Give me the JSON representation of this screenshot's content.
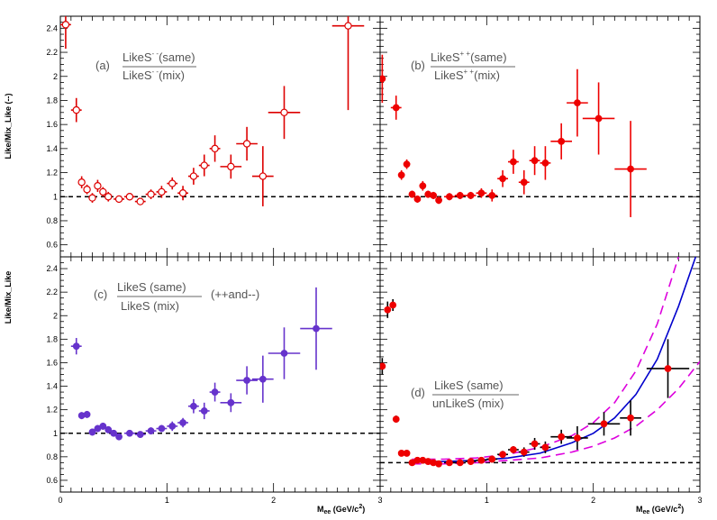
{
  "figure": {
    "left_ytitle": "Like/Mix_Like (--)",
    "right_ytitle": "Like/Mix_Like",
    "xtitle_main": "M",
    "xtitle_sub": "ee",
    "xtitle_unit": " (GeV/c",
    "xtitle_sup": "2",
    "xtitle_close": ")"
  },
  "panels": [
    {
      "id": "a",
      "tag": "(a)",
      "num_pre": "LikeS",
      "num_sup": "- -",
      "num_post": "(same)",
      "den_pre": "LikeS",
      "den_sup": "- -",
      "den_post": "(mix)",
      "extra": ""
    },
    {
      "id": "b",
      "tag": "(b)",
      "num_pre": "LikeS",
      "num_sup": "+ +",
      "num_post": "(same)",
      "den_pre": "LikeS",
      "den_sup": "+ +",
      "den_post": "(mix)",
      "extra": ""
    },
    {
      "id": "c",
      "tag": "(c)",
      "num_pre": "LikeS (same)",
      "num_sup": "",
      "num_post": "",
      "den_pre": "LikeS (mix)",
      "den_sup": "",
      "den_post": "",
      "extra": "(++and--)"
    },
    {
      "id": "d",
      "tag": "(d)",
      "num_pre": "LikeS (same)",
      "num_sup": "",
      "num_post": "",
      "den_pre": "unLikeS (mix)",
      "den_sup": "",
      "den_post": "",
      "extra": ""
    }
  ],
  "chart_data": [
    {
      "id": "a",
      "type": "scatter",
      "marker": "open-circle",
      "color": "#dd0000",
      "xlim": [
        0,
        3
      ],
      "ylim": [
        0.5,
        2.5
      ],
      "xticks": [],
      "yticks": [
        "0.6",
        "0.8",
        "1",
        "1.2",
        "1.4",
        "1.6",
        "1.8",
        "2",
        "2.2",
        "2.4"
      ],
      "reference_line": 1,
      "points": [
        {
          "x": 0.05,
          "y": 2.43,
          "ex": 0.05,
          "ey": 0.2
        },
        {
          "x": 0.15,
          "y": 1.72,
          "ex": 0.05,
          "ey": 0.1
        },
        {
          "x": 0.2,
          "y": 1.12,
          "ex": 0.025,
          "ey": 0.05
        },
        {
          "x": 0.25,
          "y": 1.06,
          "ex": 0.025,
          "ey": 0.04
        },
        {
          "x": 0.3,
          "y": 0.99,
          "ex": 0.025,
          "ey": 0.04
        },
        {
          "x": 0.35,
          "y": 1.09,
          "ex": 0.025,
          "ey": 0.05
        },
        {
          "x": 0.4,
          "y": 1.04,
          "ex": 0.025,
          "ey": 0.04
        },
        {
          "x": 0.45,
          "y": 1.0,
          "ex": 0.025,
          "ey": 0.04
        },
        {
          "x": 0.55,
          "y": 0.98,
          "ex": 0.05,
          "ey": 0.03
        },
        {
          "x": 0.65,
          "y": 1.0,
          "ex": 0.05,
          "ey": 0.03
        },
        {
          "x": 0.75,
          "y": 0.96,
          "ex": 0.05,
          "ey": 0.03
        },
        {
          "x": 0.85,
          "y": 1.02,
          "ex": 0.05,
          "ey": 0.04
        },
        {
          "x": 0.95,
          "y": 1.04,
          "ex": 0.05,
          "ey": 0.05
        },
        {
          "x": 1.05,
          "y": 1.11,
          "ex": 0.05,
          "ey": 0.05
        },
        {
          "x": 1.15,
          "y": 1.03,
          "ex": 0.05,
          "ey": 0.06
        },
        {
          "x": 1.25,
          "y": 1.17,
          "ex": 0.05,
          "ey": 0.07
        },
        {
          "x": 1.35,
          "y": 1.26,
          "ex": 0.05,
          "ey": 0.09
        },
        {
          "x": 1.45,
          "y": 1.4,
          "ex": 0.05,
          "ey": 0.11
        },
        {
          "x": 1.6,
          "y": 1.25,
          "ex": 0.1,
          "ey": 0.1
        },
        {
          "x": 1.75,
          "y": 1.44,
          "ex": 0.1,
          "ey": 0.14
        },
        {
          "x": 1.9,
          "y": 1.17,
          "ex": 0.1,
          "ey": 0.25
        },
        {
          "x": 2.1,
          "y": 1.7,
          "ex": 0.15,
          "ey": 0.22
        },
        {
          "x": 2.7,
          "y": 2.42,
          "ex": 0.15,
          "ey": 0.7
        }
      ]
    },
    {
      "id": "b",
      "type": "scatter",
      "marker": "filled-circle",
      "color": "#ee0000",
      "xlim": [
        0,
        3
      ],
      "ylim": [
        0.5,
        2.5
      ],
      "xticks": [],
      "yticks": [],
      "reference_line": 1,
      "points": [
        {
          "x": 0.02,
          "y": 1.98,
          "ex": 0.02,
          "ey": 0.2
        },
        {
          "x": 0.15,
          "y": 1.74,
          "ex": 0.05,
          "ey": 0.1
        },
        {
          "x": 0.2,
          "y": 1.18,
          "ex": 0.025,
          "ey": 0.04
        },
        {
          "x": 0.25,
          "y": 1.27,
          "ex": 0.025,
          "ey": 0.04
        },
        {
          "x": 0.3,
          "y": 1.02,
          "ex": 0.025,
          "ey": 0.03
        },
        {
          "x": 0.35,
          "y": 0.98,
          "ex": 0.025,
          "ey": 0.03
        },
        {
          "x": 0.4,
          "y": 1.09,
          "ex": 0.025,
          "ey": 0.04
        },
        {
          "x": 0.45,
          "y": 1.02,
          "ex": 0.025,
          "ey": 0.03
        },
        {
          "x": 0.5,
          "y": 1.01,
          "ex": 0.025,
          "ey": 0.03
        },
        {
          "x": 0.55,
          "y": 0.97,
          "ex": 0.025,
          "ey": 0.03
        },
        {
          "x": 0.65,
          "y": 1.0,
          "ex": 0.05,
          "ey": 0.03
        },
        {
          "x": 0.75,
          "y": 1.01,
          "ex": 0.05,
          "ey": 0.03
        },
        {
          "x": 0.85,
          "y": 1.01,
          "ex": 0.05,
          "ey": 0.03
        },
        {
          "x": 0.95,
          "y": 1.03,
          "ex": 0.05,
          "ey": 0.04
        },
        {
          "x": 1.05,
          "y": 1.01,
          "ex": 0.05,
          "ey": 0.05
        },
        {
          "x": 1.15,
          "y": 1.15,
          "ex": 0.05,
          "ey": 0.07
        },
        {
          "x": 1.25,
          "y": 1.29,
          "ex": 0.05,
          "ey": 0.1
        },
        {
          "x": 1.35,
          "y": 1.12,
          "ex": 0.05,
          "ey": 0.1
        },
        {
          "x": 1.45,
          "y": 1.3,
          "ex": 0.05,
          "ey": 0.12
        },
        {
          "x": 1.55,
          "y": 1.28,
          "ex": 0.05,
          "ey": 0.14
        },
        {
          "x": 1.7,
          "y": 1.46,
          "ex": 0.1,
          "ey": 0.15
        },
        {
          "x": 1.85,
          "y": 1.78,
          "ex": 0.1,
          "ey": 0.28
        },
        {
          "x": 2.05,
          "y": 1.65,
          "ex": 0.15,
          "ey": 0.3
        },
        {
          "x": 2.35,
          "y": 1.23,
          "ex": 0.15,
          "ey": 0.4
        }
      ]
    },
    {
      "id": "c",
      "type": "scatter",
      "marker": "filled-circle",
      "color": "#6633cc",
      "xlim": [
        0,
        3
      ],
      "ylim": [
        0.5,
        2.5
      ],
      "xticks": [
        "0",
        "1",
        "2",
        "3"
      ],
      "yticks": [
        "0.6",
        "0.8",
        "1",
        "1.2",
        "1.4",
        "1.6",
        "1.8",
        "2",
        "2.2",
        "2.4"
      ],
      "reference_line": 1,
      "points": [
        {
          "x": 0.15,
          "y": 1.74,
          "ex": 0.05,
          "ey": 0.07
        },
        {
          "x": 0.2,
          "y": 1.15,
          "ex": 0.025,
          "ey": 0.03
        },
        {
          "x": 0.25,
          "y": 1.16,
          "ex": 0.025,
          "ey": 0.03
        },
        {
          "x": 0.3,
          "y": 1.01,
          "ex": 0.025,
          "ey": 0.03
        },
        {
          "x": 0.35,
          "y": 1.04,
          "ex": 0.025,
          "ey": 0.03
        },
        {
          "x": 0.4,
          "y": 1.06,
          "ex": 0.025,
          "ey": 0.03
        },
        {
          "x": 0.45,
          "y": 1.03,
          "ex": 0.025,
          "ey": 0.03
        },
        {
          "x": 0.5,
          "y": 1.0,
          "ex": 0.025,
          "ey": 0.02
        },
        {
          "x": 0.55,
          "y": 0.97,
          "ex": 0.025,
          "ey": 0.02
        },
        {
          "x": 0.65,
          "y": 1.0,
          "ex": 0.05,
          "ey": 0.02
        },
        {
          "x": 0.75,
          "y": 0.99,
          "ex": 0.05,
          "ey": 0.02
        },
        {
          "x": 0.85,
          "y": 1.02,
          "ex": 0.05,
          "ey": 0.03
        },
        {
          "x": 0.95,
          "y": 1.04,
          "ex": 0.05,
          "ey": 0.03
        },
        {
          "x": 1.05,
          "y": 1.06,
          "ex": 0.05,
          "ey": 0.04
        },
        {
          "x": 1.15,
          "y": 1.09,
          "ex": 0.05,
          "ey": 0.04
        },
        {
          "x": 1.25,
          "y": 1.23,
          "ex": 0.05,
          "ey": 0.06
        },
        {
          "x": 1.35,
          "y": 1.19,
          "ex": 0.05,
          "ey": 0.07
        },
        {
          "x": 1.45,
          "y": 1.35,
          "ex": 0.05,
          "ey": 0.08
        },
        {
          "x": 1.6,
          "y": 1.26,
          "ex": 0.1,
          "ey": 0.08
        },
        {
          "x": 1.75,
          "y": 1.45,
          "ex": 0.1,
          "ey": 0.12
        },
        {
          "x": 1.9,
          "y": 1.46,
          "ex": 0.1,
          "ey": 0.2
        },
        {
          "x": 2.1,
          "y": 1.68,
          "ex": 0.15,
          "ey": 0.22
        },
        {
          "x": 2.4,
          "y": 1.89,
          "ex": 0.15,
          "ey": 0.35
        }
      ]
    },
    {
      "id": "d",
      "type": "scatter",
      "marker": "filled-circle",
      "color": "#ee0000",
      "xlim": [
        0,
        3
      ],
      "ylim": [
        0.5,
        2.5
      ],
      "xticks": [
        "1",
        "2",
        "3"
      ],
      "yticks": [],
      "reference_line": 0.75,
      "points": [
        {
          "x": 0.02,
          "y": 1.57,
          "ex": 0.02,
          "ey": 0.07
        },
        {
          "x": 0.07,
          "y": 2.05,
          "ex": 0.025,
          "ey": 0.07
        },
        {
          "x": 0.12,
          "y": 2.09,
          "ex": 0.025,
          "ey": 0.05
        },
        {
          "x": 0.15,
          "y": 1.12,
          "ex": 0.025,
          "ey": 0.03
        },
        {
          "x": 0.2,
          "y": 0.83,
          "ex": 0.025,
          "ey": 0.02
        },
        {
          "x": 0.25,
          "y": 0.83,
          "ex": 0.025,
          "ey": 0.02
        },
        {
          "x": 0.3,
          "y": 0.75,
          "ex": 0.025,
          "ey": 0.02
        },
        {
          "x": 0.35,
          "y": 0.77,
          "ex": 0.025,
          "ey": 0.02
        },
        {
          "x": 0.4,
          "y": 0.77,
          "ex": 0.025,
          "ey": 0.02
        },
        {
          "x": 0.45,
          "y": 0.76,
          "ex": 0.025,
          "ey": 0.02
        },
        {
          "x": 0.5,
          "y": 0.75,
          "ex": 0.025,
          "ey": 0.02
        },
        {
          "x": 0.55,
          "y": 0.74,
          "ex": 0.025,
          "ey": 0.02
        },
        {
          "x": 0.65,
          "y": 0.75,
          "ex": 0.05,
          "ey": 0.02
        },
        {
          "x": 0.75,
          "y": 0.75,
          "ex": 0.05,
          "ey": 0.02
        },
        {
          "x": 0.85,
          "y": 0.76,
          "ex": 0.05,
          "ey": 0.02
        },
        {
          "x": 0.95,
          "y": 0.77,
          "ex": 0.05,
          "ey": 0.02
        },
        {
          "x": 1.05,
          "y": 0.78,
          "ex": 0.05,
          "ey": 0.03
        },
        {
          "x": 1.15,
          "y": 0.82,
          "ex": 0.05,
          "ey": 0.03
        },
        {
          "x": 1.25,
          "y": 0.86,
          "ex": 0.05,
          "ey": 0.03
        },
        {
          "x": 1.35,
          "y": 0.84,
          "ex": 0.05,
          "ey": 0.04
        },
        {
          "x": 1.45,
          "y": 0.91,
          "ex": 0.05,
          "ey": 0.05
        },
        {
          "x": 1.55,
          "y": 0.88,
          "ex": 0.05,
          "ey": 0.05
        },
        {
          "x": 1.7,
          "y": 0.97,
          "ex": 0.1,
          "ey": 0.06
        },
        {
          "x": 1.85,
          "y": 0.96,
          "ex": 0.1,
          "ey": 0.1
        },
        {
          "x": 2.1,
          "y": 1.08,
          "ex": 0.15,
          "ey": 0.1
        },
        {
          "x": 2.35,
          "y": 1.13,
          "ex": 0.1,
          "ey": 0.15
        },
        {
          "x": 2.7,
          "y": 1.55,
          "ex": 0.2,
          "ey": 0.25
        }
      ],
      "curves": [
        {
          "style": "solid",
          "color": "#0000cc",
          "points": [
            [
              0.3,
              0.76
            ],
            [
              0.6,
              0.76
            ],
            [
              0.9,
              0.77
            ],
            [
              1.2,
              0.79
            ],
            [
              1.5,
              0.83
            ],
            [
              1.8,
              0.92
            ],
            [
              2.0,
              1.0
            ],
            [
              2.2,
              1.13
            ],
            [
              2.4,
              1.33
            ],
            [
              2.6,
              1.63
            ],
            [
              2.8,
              2.08
            ],
            [
              2.96,
              2.5
            ]
          ]
        },
        {
          "style": "dashed",
          "color": "#dd00dd",
          "points": [
            [
              0.3,
              0.78
            ],
            [
              0.6,
              0.78
            ],
            [
              0.9,
              0.79
            ],
            [
              1.2,
              0.82
            ],
            [
              1.5,
              0.88
            ],
            [
              1.8,
              0.98
            ],
            [
              2.0,
              1.09
            ],
            [
              2.2,
              1.26
            ],
            [
              2.4,
              1.53
            ],
            [
              2.6,
              1.93
            ],
            [
              2.8,
              2.5
            ]
          ]
        },
        {
          "style": "dashed",
          "color": "#dd00dd",
          "points": [
            [
              0.3,
              0.74
            ],
            [
              0.6,
              0.74
            ],
            [
              0.9,
              0.75
            ],
            [
              1.2,
              0.77
            ],
            [
              1.5,
              0.79
            ],
            [
              1.8,
              0.84
            ],
            [
              2.0,
              0.89
            ],
            [
              2.2,
              0.96
            ],
            [
              2.4,
              1.06
            ],
            [
              2.6,
              1.2
            ],
            [
              2.8,
              1.38
            ],
            [
              3.0,
              1.61
            ]
          ]
        }
      ]
    }
  ]
}
